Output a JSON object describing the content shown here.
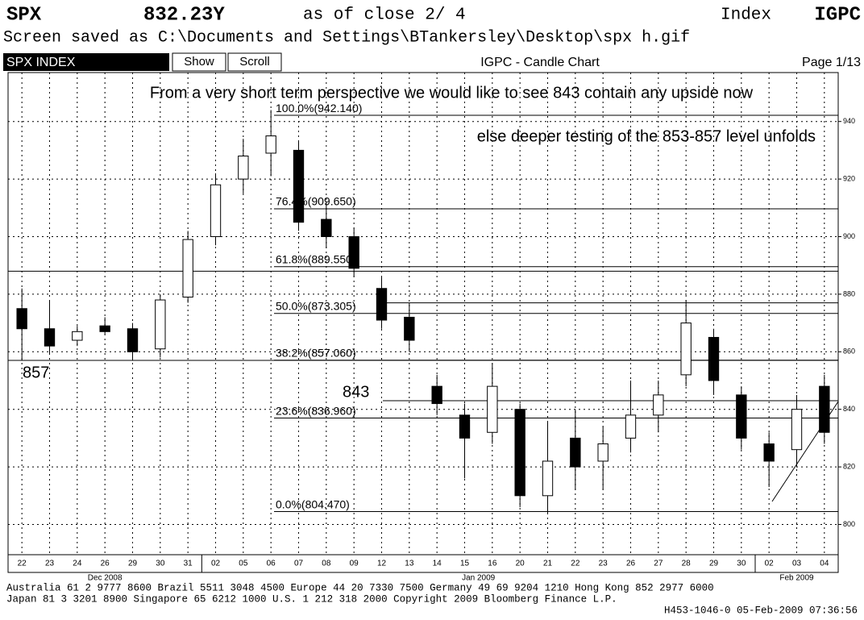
{
  "chart_data": {
    "type": "candlestick",
    "ticker": "SPX",
    "price": "832.23Y",
    "as_of": "as of close  2/ 4",
    "index_label": "Index",
    "function": "IGPC",
    "saved_as": "Screen saved as C:\\Documents and Settings\\BTankersley\\Desktop\\spx h.gif",
    "security": "SPX INDEX",
    "buttons": [
      "Show",
      "Scroll"
    ],
    "title": "IGPC - Candle Chart",
    "page": "Page 1/13",
    "annotations": [
      "From a very short term perspective we would like to see 843 contain any upside now",
      "else deeper testing of the 853-857 level unfolds"
    ],
    "categories": [
      "22",
      "23",
      "24",
      "26",
      "29",
      "30",
      "31",
      "02",
      "05",
      "06",
      "07",
      "08",
      "09",
      "12",
      "13",
      "14",
      "15",
      "16",
      "20",
      "21",
      "22",
      "23",
      "26",
      "27",
      "28",
      "29",
      "30",
      "02",
      "03",
      "04"
    ],
    "months": [
      "Dec 2008",
      "Jan 2009",
      "Feb 2009"
    ],
    "open": [
      875,
      868,
      864,
      869,
      868,
      861,
      879,
      900,
      920,
      929,
      930,
      906,
      900,
      882,
      872,
      848,
      838,
      832,
      840,
      810,
      830,
      822,
      830,
      838,
      852,
      865,
      845,
      828,
      826,
      848
    ],
    "high": [
      882,
      878,
      869,
      872,
      870,
      880,
      902,
      922,
      934,
      944,
      933,
      912,
      903,
      886,
      877,
      852,
      842,
      856,
      842,
      836,
      840,
      834,
      850,
      850,
      878,
      868,
      848,
      832,
      845,
      852
    ],
    "low": [
      857,
      859,
      862,
      866,
      857,
      858,
      877,
      897,
      915,
      921,
      902,
      896,
      886,
      868,
      860,
      838,
      816,
      828,
      806,
      804,
      812,
      812,
      825,
      832,
      848,
      845,
      826,
      813,
      820,
      828
    ],
    "close": [
      868,
      862,
      867,
      867,
      860,
      878,
      899,
      918,
      928,
      935,
      905,
      900,
      889,
      871,
      864,
      842,
      830,
      848,
      810,
      822,
      820,
      828,
      838,
      845,
      870,
      850,
      830,
      822,
      840,
      832
    ],
    "fib_levels": [
      {
        "label": "100.0%(942.140)",
        "value": 942.14
      },
      {
        "label": "76.4%(909.650)",
        "value": 909.65
      },
      {
        "label": "61.8%(889.550)",
        "value": 889.55
      },
      {
        "label": "50.0%(873.305)",
        "value": 873.305
      },
      {
        "label": "38.2%(857.060)",
        "value": 857.06
      },
      {
        "label": "23.6%(836.960)",
        "value": 836.96
      },
      {
        "label": "0.0%(804.470)",
        "value": 804.47
      }
    ],
    "levels": [
      {
        "value": 888
      },
      {
        "value": 877
      },
      {
        "value": 843,
        "label": "843"
      },
      {
        "value": 857,
        "label": "857"
      }
    ],
    "ylim": [
      789.5,
      957
    ],
    "yticks": [
      800,
      820,
      840,
      860,
      880,
      900,
      920,
      940
    ],
    "grid": true,
    "footer": [
      "Australia 61 2 9777 8600 Brazil 5511 3048 4500 Europe 44 20 7330 7500 Germany 49 69 9204 1210 Hong Kong 852 2977 6000",
      "Japan 81 3 3201 8900       Singapore 65 6212 1000       U.S. 1 212 318 2000         Copyright 2009 Bloomberg Finance L.P.",
      "H453-1046-0 05-Feb-2009 07:36:56"
    ]
  }
}
